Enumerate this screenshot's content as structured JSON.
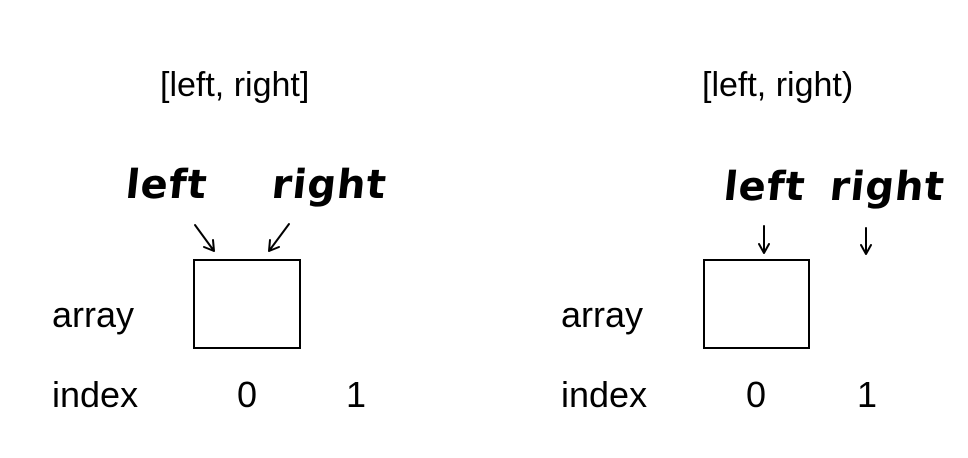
{
  "panels": [
    {
      "title": "[left, right]",
      "pointer_left": "left",
      "pointer_right": "right",
      "row_array": "array",
      "row_index": "index",
      "indices": [
        "0",
        "1"
      ]
    },
    {
      "title": "[left, right)",
      "pointer_left": "left",
      "pointer_right": "right",
      "row_array": "array",
      "row_index": "index",
      "indices": [
        "0",
        "1"
      ]
    }
  ]
}
